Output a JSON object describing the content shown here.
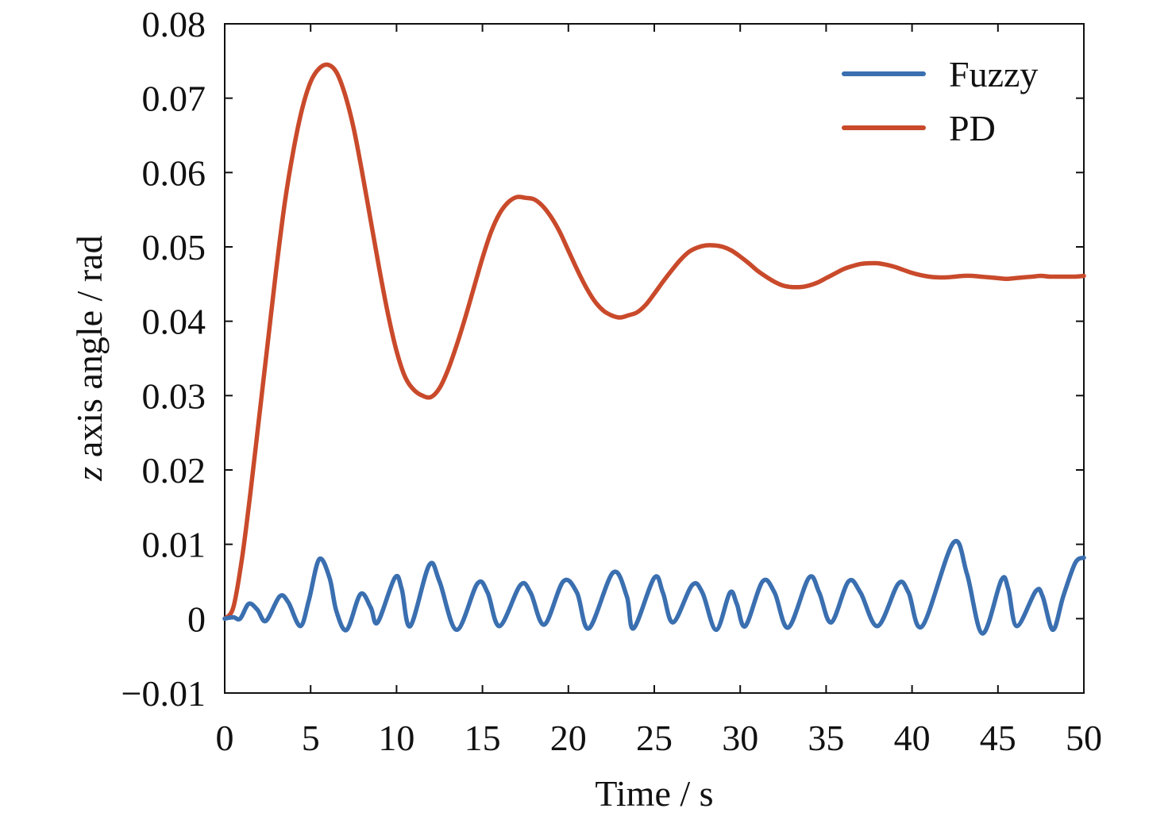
{
  "chart_data": {
    "type": "line",
    "title": "",
    "xlabel": "Time / s",
    "ylabel": {
      "italic_var": "z",
      "rest": " axis angle / rad"
    },
    "xlim": [
      0,
      50
    ],
    "ylim": [
      -0.01,
      0.08
    ],
    "grid": false,
    "legend_position": "top-right",
    "x_ticks": [
      "0",
      "5",
      "10",
      "15",
      "20",
      "25",
      "30",
      "35",
      "40",
      "45",
      "50"
    ],
    "y_ticks": [
      "−0.01",
      "0",
      "0.01",
      "0.02",
      "0.03",
      "0.04",
      "0.05",
      "0.06",
      "0.07",
      "0.08"
    ],
    "series": [
      {
        "name": "Fuzzy",
        "color": "#3A6FB0",
        "points": [
          [
            0,
            0
          ],
          [
            0.5,
            0.0002
          ],
          [
            0.9,
            0.0
          ],
          [
            1.4,
            0.002
          ],
          [
            1.9,
            0.0012
          ],
          [
            2.4,
            -0.0003
          ],
          [
            3.2,
            0.003
          ],
          [
            3.7,
            0.0022
          ],
          [
            4.4,
            -0.001
          ],
          [
            4.9,
            0.0025
          ],
          [
            5.5,
            0.008
          ],
          [
            6.1,
            0.0055
          ],
          [
            6.5,
            0.001
          ],
          [
            7.1,
            -0.0015
          ],
          [
            7.9,
            0.0033
          ],
          [
            8.5,
            0.0015
          ],
          [
            8.9,
            -0.0005
          ],
          [
            9.9,
            0.0055
          ],
          [
            10.3,
            0.004
          ],
          [
            10.8,
            -0.001
          ],
          [
            11.9,
            0.0072
          ],
          [
            12.5,
            0.005
          ],
          [
            13.5,
            -0.0015
          ],
          [
            14.7,
            0.0047
          ],
          [
            15.3,
            0.0035
          ],
          [
            16.0,
            -0.001
          ],
          [
            17.2,
            0.0045
          ],
          [
            17.8,
            0.0035
          ],
          [
            18.6,
            -0.0008
          ],
          [
            19.7,
            0.005
          ],
          [
            20.5,
            0.0035
          ],
          [
            21.2,
            -0.0013
          ],
          [
            22.6,
            0.0062
          ],
          [
            23.4,
            0.003
          ],
          [
            23.8,
            -0.0013
          ],
          [
            25.0,
            0.0055
          ],
          [
            25.5,
            0.0035
          ],
          [
            26.1,
            -0.0005
          ],
          [
            27.2,
            0.0045
          ],
          [
            27.8,
            0.0035
          ],
          [
            28.6,
            -0.0015
          ],
          [
            29.4,
            0.0035
          ],
          [
            29.8,
            0.002
          ],
          [
            30.3,
            -0.001
          ],
          [
            31.3,
            0.005
          ],
          [
            32.0,
            0.0035
          ],
          [
            32.8,
            -0.0012
          ],
          [
            34.0,
            0.0055
          ],
          [
            34.6,
            0.0035
          ],
          [
            35.3,
            -0.0005
          ],
          [
            36.3,
            0.005
          ],
          [
            37.0,
            0.0035
          ],
          [
            38.0,
            -0.001
          ],
          [
            39.2,
            0.0047
          ],
          [
            39.8,
            0.0035
          ],
          [
            40.6,
            -0.001
          ],
          [
            42.4,
            0.0102
          ],
          [
            43.2,
            0.006
          ],
          [
            44.1,
            -0.002
          ],
          [
            45.2,
            0.0052
          ],
          [
            45.6,
            0.004
          ],
          [
            46.1,
            -0.001
          ],
          [
            47.2,
            0.0037
          ],
          [
            47.6,
            0.003
          ],
          [
            48.2,
            -0.0015
          ],
          [
            48.8,
            0.003
          ],
          [
            49.5,
            0.0075
          ],
          [
            50,
            0.0082
          ]
        ]
      },
      {
        "name": "PD",
        "color": "#C94A2B",
        "points": [
          [
            0,
            0
          ],
          [
            0.5,
            0.0015
          ],
          [
            1.0,
            0.008
          ],
          [
            1.5,
            0.017
          ],
          [
            2.0,
            0.027
          ],
          [
            2.5,
            0.037
          ],
          [
            3.0,
            0.047
          ],
          [
            3.5,
            0.056
          ],
          [
            4.0,
            0.063
          ],
          [
            4.5,
            0.0685
          ],
          [
            5.0,
            0.0722
          ],
          [
            5.5,
            0.074
          ],
          [
            6.0,
            0.0745
          ],
          [
            6.5,
            0.0735
          ],
          [
            7.0,
            0.0705
          ],
          [
            7.5,
            0.066
          ],
          [
            8.0,
            0.06
          ],
          [
            8.5,
            0.0535
          ],
          [
            9.0,
            0.047
          ],
          [
            9.5,
            0.041
          ],
          [
            10.0,
            0.036
          ],
          [
            10.5,
            0.0325
          ],
          [
            11.0,
            0.0308
          ],
          [
            11.5,
            0.03
          ],
          [
            12.0,
            0.0298
          ],
          [
            12.5,
            0.031
          ],
          [
            13.0,
            0.0335
          ],
          [
            13.5,
            0.0368
          ],
          [
            14.0,
            0.0405
          ],
          [
            14.5,
            0.0445
          ],
          [
            15.0,
            0.0485
          ],
          [
            15.5,
            0.052
          ],
          [
            16.0,
            0.0545
          ],
          [
            16.5,
            0.056
          ],
          [
            17.0,
            0.0567
          ],
          [
            17.5,
            0.0566
          ],
          [
            18.0,
            0.0564
          ],
          [
            18.5,
            0.0555
          ],
          [
            19.0,
            0.054
          ],
          [
            19.5,
            0.052
          ],
          [
            20.0,
            0.0495
          ],
          [
            20.5,
            0.047
          ],
          [
            21.0,
            0.0447
          ],
          [
            21.5,
            0.0428
          ],
          [
            22.0,
            0.0415
          ],
          [
            22.5,
            0.0408
          ],
          [
            23.0,
            0.0405
          ],
          [
            23.5,
            0.0408
          ],
          [
            24.0,
            0.0412
          ],
          [
            24.5,
            0.0422
          ],
          [
            25.0,
            0.0437
          ],
          [
            25.5,
            0.0453
          ],
          [
            26.0,
            0.0468
          ],
          [
            26.5,
            0.0482
          ],
          [
            27.0,
            0.0493
          ],
          [
            27.5,
            0.0499
          ],
          [
            28.0,
            0.0502
          ],
          [
            28.5,
            0.0502
          ],
          [
            29.0,
            0.05
          ],
          [
            29.5,
            0.0495
          ],
          [
            30.0,
            0.0487
          ],
          [
            30.5,
            0.0478
          ],
          [
            31.0,
            0.0468
          ],
          [
            31.5,
            0.046
          ],
          [
            32.0,
            0.0453
          ],
          [
            32.5,
            0.0448
          ],
          [
            33.0,
            0.0446
          ],
          [
            33.5,
            0.0446
          ],
          [
            34.0,
            0.0448
          ],
          [
            34.5,
            0.0452
          ],
          [
            35.0,
            0.0458
          ],
          [
            35.5,
            0.0464
          ],
          [
            36.0,
            0.047
          ],
          [
            36.5,
            0.0474
          ],
          [
            37.0,
            0.0477
          ],
          [
            37.5,
            0.0478
          ],
          [
            38.0,
            0.0478
          ],
          [
            38.5,
            0.0476
          ],
          [
            39.0,
            0.0473
          ],
          [
            39.5,
            0.0469
          ],
          [
            40.0,
            0.0465
          ],
          [
            40.5,
            0.0462
          ],
          [
            41.0,
            0.046
          ],
          [
            41.5,
            0.0459
          ],
          [
            42.0,
            0.0459
          ],
          [
            42.5,
            0.046
          ],
          [
            43.0,
            0.0461
          ],
          [
            43.5,
            0.0461
          ],
          [
            44.0,
            0.046
          ],
          [
            44.5,
            0.0459
          ],
          [
            45.0,
            0.0458
          ],
          [
            45.5,
            0.0457
          ],
          [
            46.0,
            0.0458
          ],
          [
            46.5,
            0.0459
          ],
          [
            47.0,
            0.046
          ],
          [
            47.5,
            0.0461
          ],
          [
            48.0,
            0.046
          ],
          [
            48.5,
            0.046
          ],
          [
            49.0,
            0.046
          ],
          [
            49.5,
            0.046
          ],
          [
            50.0,
            0.0461
          ]
        ]
      }
    ]
  }
}
